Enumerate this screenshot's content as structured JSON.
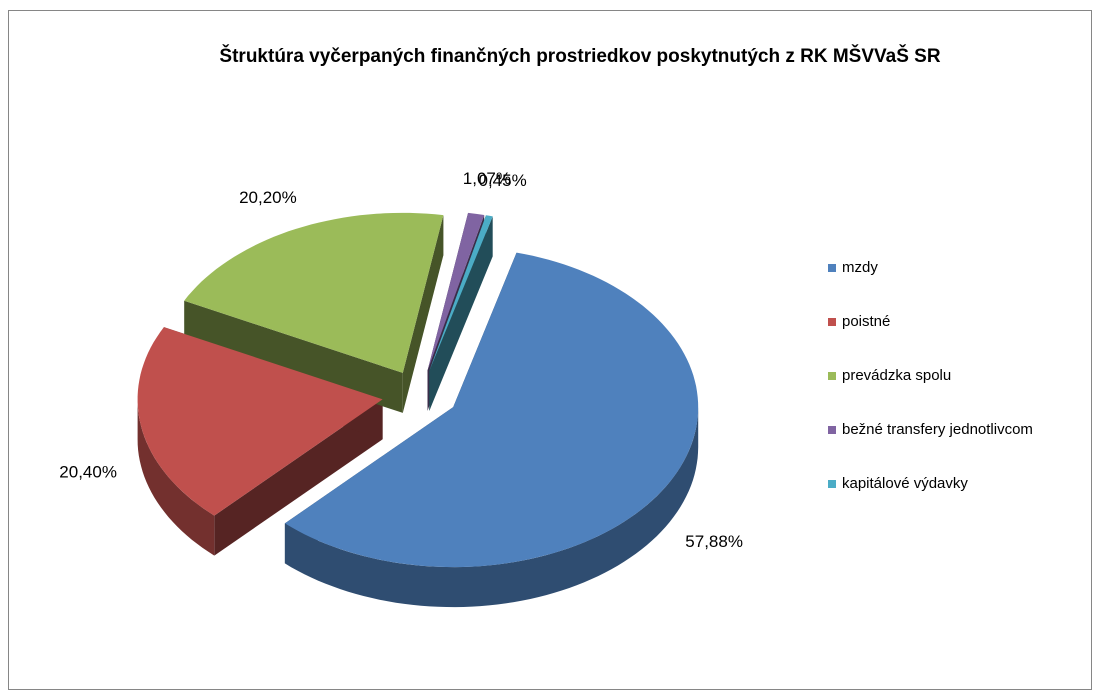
{
  "chart_data": {
    "type": "pie",
    "title": "Štruktúra vyčerpaných finančných prostriedkov poskytnutých  z RK MŠVVaŠ SR",
    "categories": [
      "mzdy",
      "poistné",
      "prevádzka spolu",
      "bežné transfery jednotlivcom",
      "kapitálové výdavky"
    ],
    "values": [
      57.88,
      20.4,
      20.2,
      1.07,
      0.45
    ],
    "value_labels": [
      "57,88%",
      "20,40%",
      "20,20%",
      "1,07%",
      "0,45%"
    ],
    "colors": [
      "#4f81bd",
      "#c0504d",
      "#9bbb59",
      "#8064a2",
      "#4bacc6"
    ],
    "legend": "right"
  }
}
